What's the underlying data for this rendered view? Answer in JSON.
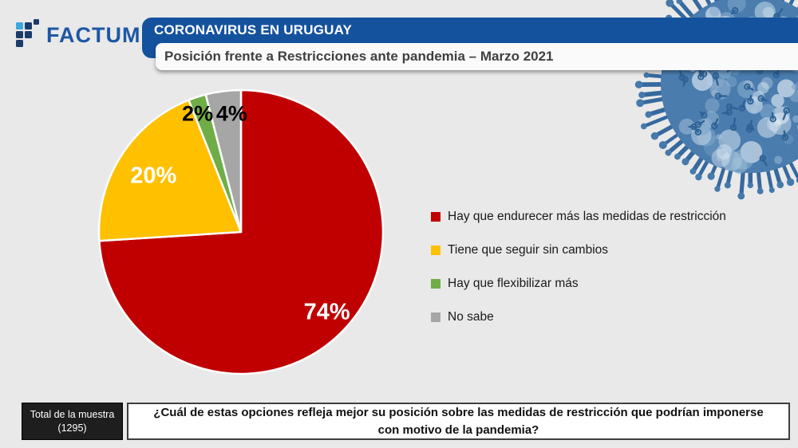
{
  "brand": {
    "wordmark": "FACTUM"
  },
  "header": {
    "title": "CORONAVIRUS EN URUGUAY",
    "subtitle": "Posición frente a Restricciones ante pandemia – Marzo 2021"
  },
  "chart_data": {
    "type": "pie",
    "title": "Posición frente a Restricciones ante pandemia – Marzo 2021",
    "start_angle_deg": 0,
    "direction": "clockwise",
    "legend_position": "right",
    "slices": [
      {
        "label": "Hay que endurecer más las medidas de restricción",
        "value": 74,
        "value_label": "74%",
        "color": "#C00000",
        "label_color": "#FFFFFF"
      },
      {
        "label": "Tiene que seguir sin cambios",
        "value": 20,
        "value_label": "20%",
        "color": "#FFC000",
        "label_color": "#FFFFFF"
      },
      {
        "label": "Hay que flexibilizar más",
        "value": 2,
        "value_label": "2%",
        "color": "#70AD47",
        "label_color": "#000000"
      },
      {
        "label": "No sabe",
        "value": 4,
        "value_label": "4%",
        "color": "#A6A6A6",
        "label_color": "#000000"
      }
    ]
  },
  "footer": {
    "sample_line1": "Total de la muestra",
    "sample_line2": "(1295)",
    "question": "¿Cuál de estas opciones refleja mejor su posición sobre las medidas de restricción que podrían imponerse con motivo de la pandemia?"
  },
  "decoration": {
    "icon": "coronavirus-virus-illustration"
  },
  "colors": {
    "page_bg": "#E9E9E9",
    "header_blue": "#15529E",
    "virus_blue": "#4A7CAE",
    "logo_navy": "#1B3C69",
    "logo_light_blue": "#3BA9DE"
  }
}
